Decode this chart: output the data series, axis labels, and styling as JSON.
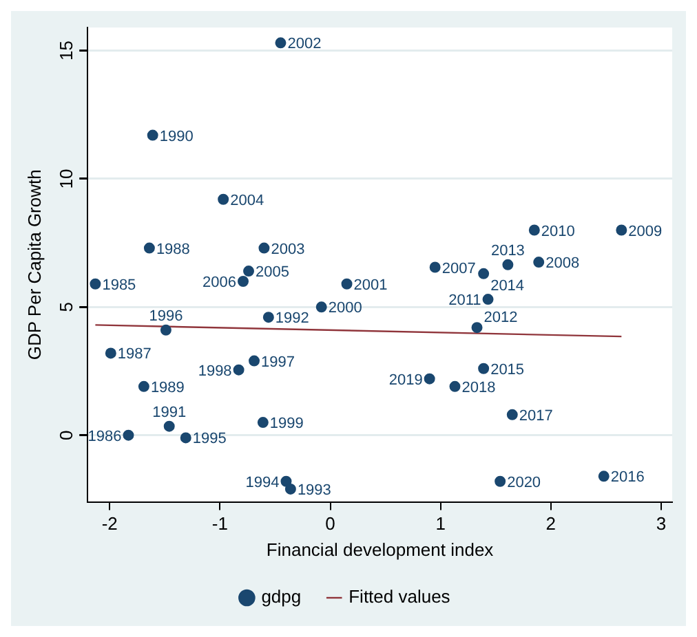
{
  "chart_data": {
    "type": "scatter",
    "xlabel": "Financial development index",
    "ylabel": "GDP Per Capita Growth",
    "xlim": [
      -2.2,
      3.1
    ],
    "ylim": [
      -2.6,
      15.9
    ],
    "xticks": [
      -2,
      -1,
      0,
      1,
      2,
      3
    ],
    "yticks": [
      0,
      5,
      10,
      15
    ],
    "grid": "y",
    "legend": "bottom",
    "marker": "circle",
    "series": [
      {
        "name": "gdpg",
        "type": "scatter",
        "color": "#1a476f",
        "x": [
          -0.45,
          -1.61,
          -0.97,
          -1.64,
          -0.6,
          -0.74,
          -0.79,
          -2.13,
          0.15,
          -0.08,
          -0.56,
          -1.49,
          -1.99,
          -0.69,
          -0.83,
          -1.69,
          -0.61,
          -1.46,
          -1.83,
          -1.31,
          -0.4,
          -0.36,
          1.85,
          2.64,
          0.95,
          1.39,
          1.61,
          1.89,
          1.43,
          1.33,
          1.39,
          0.9,
          1.13,
          1.65,
          1.54,
          2.48
        ],
        "values": [
          15.3,
          11.7,
          9.2,
          7.3,
          7.3,
          6.4,
          6.0,
          5.9,
          5.9,
          5.0,
          4.6,
          4.1,
          3.2,
          2.9,
          2.55,
          1.9,
          0.5,
          0.35,
          0.0,
          -0.1,
          -1.8,
          -2.1,
          8.0,
          8.0,
          6.55,
          6.3,
          6.65,
          6.75,
          5.3,
          4.2,
          2.6,
          2.2,
          1.9,
          0.8,
          -1.8,
          -1.6
        ]
      },
      {
        "name": "Fitted values",
        "type": "line",
        "color": "#90353b",
        "marker": "none",
        "x": [
          -2.13,
          2.64
        ],
        "values": [
          4.3,
          3.85
        ]
      }
    ],
    "annotations": [
      {
        "text": "2002",
        "x": -0.45,
        "y": 15.3
      },
      {
        "text": "1990",
        "x": -1.61,
        "y": 11.7
      },
      {
        "text": "2004",
        "x": -0.97,
        "y": 9.2
      },
      {
        "text": "1988",
        "x": -1.64,
        "y": 7.3
      },
      {
        "text": "2003",
        "x": -0.6,
        "y": 7.3
      },
      {
        "text": "2005",
        "x": -0.74,
        "y": 6.4
      },
      {
        "text": "2006",
        "x": -0.79,
        "y": 6.0
      },
      {
        "text": "1985",
        "x": -2.13,
        "y": 5.9
      },
      {
        "text": "2001",
        "x": 0.15,
        "y": 5.9
      },
      {
        "text": "2000",
        "x": -0.08,
        "y": 5.0
      },
      {
        "text": "1992",
        "x": -0.56,
        "y": 4.6
      },
      {
        "text": "1996",
        "x": -1.49,
        "y": 4.1
      },
      {
        "text": "1987",
        "x": -1.99,
        "y": 3.2
      },
      {
        "text": "1997",
        "x": -0.69,
        "y": 2.9
      },
      {
        "text": "1998",
        "x": -0.83,
        "y": 2.55
      },
      {
        "text": "1989",
        "x": -1.69,
        "y": 1.9
      },
      {
        "text": "1999",
        "x": -0.61,
        "y": 0.5
      },
      {
        "text": "1991",
        "x": -1.46,
        "y": 0.35
      },
      {
        "text": "1986",
        "x": -1.83,
        "y": 0.0
      },
      {
        "text": "1995",
        "x": -1.31,
        "y": -0.1
      },
      {
        "text": "1994",
        "x": -0.4,
        "y": -1.8
      },
      {
        "text": "1993",
        "x": -0.36,
        "y": -2.1
      },
      {
        "text": "2010",
        "x": 1.85,
        "y": 8.0
      },
      {
        "text": "2009",
        "x": 2.64,
        "y": 8.0
      },
      {
        "text": "2007",
        "x": 0.95,
        "y": 6.55
      },
      {
        "text": "2014",
        "x": 1.39,
        "y": 6.3
      },
      {
        "text": "2013",
        "x": 1.61,
        "y": 6.65
      },
      {
        "text": "2008",
        "x": 1.89,
        "y": 6.75
      },
      {
        "text": "2011",
        "x": 1.43,
        "y": 5.3
      },
      {
        "text": "2012",
        "x": 1.33,
        "y": 4.2
      },
      {
        "text": "2015",
        "x": 1.39,
        "y": 2.6
      },
      {
        "text": "2019",
        "x": 0.9,
        "y": 2.2
      },
      {
        "text": "2018",
        "x": 1.13,
        "y": 1.9
      },
      {
        "text": "2017",
        "x": 1.65,
        "y": 0.8
      },
      {
        "text": "2020",
        "x": 1.54,
        "y": -1.8
      },
      {
        "text": "2016",
        "x": 2.48,
        "y": -1.6
      }
    ]
  }
}
